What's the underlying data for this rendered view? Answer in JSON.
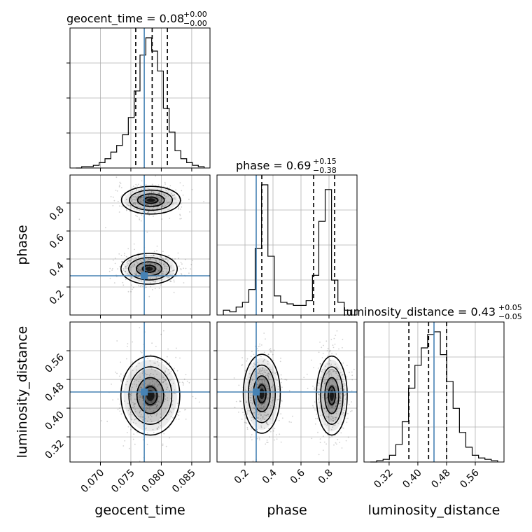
{
  "chart_data": {
    "type": "corner",
    "parameters": [
      "geocent_time",
      "phase",
      "luminosity_distance"
    ],
    "truths": {
      "geocent_time": 0.0772,
      "phase": 0.28,
      "luminosity_distance": 0.445
    },
    "panels": {
      "hist_geocent_time": {
        "title_prefix": "geocent_time = 0.08",
        "title_sup": "+0.00",
        "title_sub": "−0.00",
        "xlim": [
          0.065,
          0.088
        ],
        "bins": [
          0.066,
          0.067,
          0.068,
          0.069,
          0.07,
          0.071,
          0.072,
          0.073,
          0.074,
          0.075,
          0.076,
          0.077,
          0.078,
          0.079,
          0.08,
          0.081,
          0.082,
          0.083,
          0.084,
          0.085,
          0.086,
          0.087,
          0.088
        ],
        "counts": [
          0,
          0.01,
          0.01,
          0.02,
          0.04,
          0.07,
          0.12,
          0.17,
          0.25,
          0.38,
          0.58,
          0.85,
          0.98,
          0.88,
          0.73,
          0.45,
          0.27,
          0.13,
          0.07,
          0.04,
          0.02,
          0.01
        ],
        "quantiles": [
          0.0758,
          0.0785,
          0.081
        ]
      },
      "hist_phase": {
        "title_prefix": "phase = 0.69",
        "title_sup": "+0.15",
        "title_sub": "−0.38",
        "xlim": [
          0.0,
          1.0
        ],
        "counts": [
          0.03,
          0.02,
          0.05,
          0.08,
          0.16,
          0.42,
          0.82,
          0.37,
          0.12,
          0.08,
          0.07,
          0.06,
          0.06,
          0.09,
          0.25,
          0.59,
          0.79,
          0.22,
          0.08,
          0.03
        ],
        "quantiles": [
          0.32,
          0.69,
          0.84
        ]
      },
      "hist_luminosity_distance": {
        "title_prefix": "luminosity_distance = 0.43",
        "title_sup": "+0.05",
        "title_sub": "−0.05",
        "xlim": [
          0.25,
          0.64
        ],
        "counts": [
          0.0,
          0.01,
          0.02,
          0.05,
          0.13,
          0.3,
          0.55,
          0.72,
          0.85,
          0.95,
          0.97,
          0.8,
          0.6,
          0.4,
          0.22,
          0.11,
          0.05,
          0.03,
          0.02,
          0.01
        ],
        "quantiles": [
          0.375,
          0.43,
          0.48
        ]
      },
      "scatter_phase_vs_geocent_time": {
        "x": "geocent_time",
        "y": "phase",
        "modes": [
          {
            "cx": 0.0783,
            "cy": 0.82,
            "sx": 0.0022,
            "sy": 0.045
          },
          {
            "cx": 0.078,
            "cy": 0.33,
            "sx": 0.0021,
            "sy": 0.05
          }
        ]
      },
      "scatter_luminosity_distance_vs_geocent_time": {
        "x": "geocent_time",
        "y": "luminosity_distance",
        "modes": [
          {
            "cx": 0.0782,
            "cy": 0.435,
            "sx": 0.0022,
            "sy": 0.05
          }
        ]
      },
      "scatter_luminosity_distance_vs_phase": {
        "x": "phase",
        "y": "luminosity_distance",
        "modes": [
          {
            "cx": 0.32,
            "cy": 0.44,
            "sx": 0.06,
            "sy": 0.05
          },
          {
            "cx": 0.82,
            "cy": 0.435,
            "sx": 0.05,
            "sy": 0.05
          }
        ]
      }
    },
    "axes": {
      "geocent_time": {
        "label": "geocent_time",
        "lim": [
          0.065,
          0.088
        ],
        "ticks": [
          "0.070",
          "0.075",
          "0.080",
          "0.085"
        ],
        "tick_values": [
          0.07,
          0.075,
          0.08,
          0.085
        ]
      },
      "phase": {
        "label": "phase",
        "lim": [
          0.0,
          1.0
        ],
        "ticks": [
          "0.2",
          "0.4",
          "0.6",
          "0.8"
        ],
        "tick_values": [
          0.2,
          0.4,
          0.6,
          0.8
        ]
      },
      "luminosity_distance": {
        "label": "luminosity_distance",
        "lim": [
          0.25,
          0.64
        ],
        "ticks": [
          "0.32",
          "0.40",
          "0.48",
          "0.56"
        ],
        "tick_values": [
          0.32,
          0.4,
          0.48,
          0.56
        ]
      }
    },
    "colors": {
      "truth": "#4682b4",
      "hist": "#000000",
      "grid": "#b0b0b0",
      "points": "#000000"
    },
    "grid": true
  }
}
